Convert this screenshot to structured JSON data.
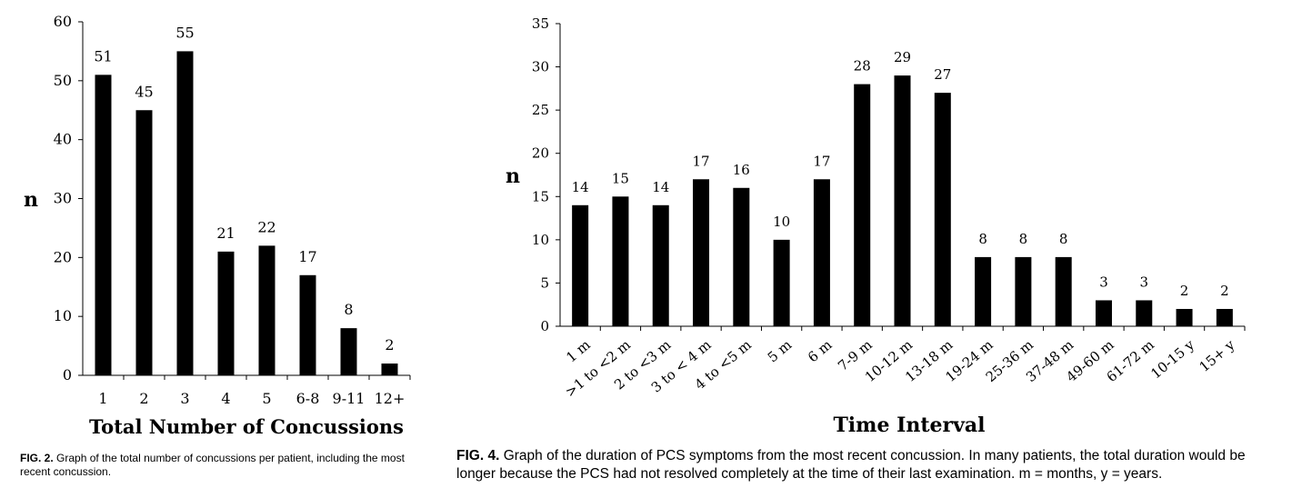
{
  "chart_data": [
    {
      "type": "bar",
      "categories": [
        "1",
        "2",
        "3",
        "4",
        "5",
        "6-8",
        "9-11",
        "12+"
      ],
      "values": [
        51,
        45,
        55,
        21,
        22,
        17,
        8,
        2
      ],
      "title": "",
      "xlabel": "Total Number of Concussions",
      "ylabel": "n",
      "ylim": [
        0,
        60
      ],
      "yticks": [
        "0",
        "10",
        "20",
        "30",
        "40",
        "50",
        "60"
      ],
      "bar_color": "#000000",
      "grid": false,
      "legend": "none",
      "caption_label": "FIG. 2.",
      "caption_text": "Graph of the total number of concussions per patient, including the most recent concussion."
    },
    {
      "type": "bar",
      "categories": [
        "1 m",
        ">1 to <2 m",
        "2 to <3 m",
        "3 to < 4 m",
        "4 to <5 m",
        "5 m",
        "6 m",
        "7-9 m",
        "10-12 m",
        "13-18 m",
        "19-24 m",
        "25-36 m",
        "37-48 m",
        "49-60 m",
        "61-72 m",
        "10-15 y",
        "15+ y"
      ],
      "values": [
        14,
        15,
        14,
        17,
        16,
        10,
        17,
        28,
        29,
        27,
        8,
        8,
        8,
        3,
        3,
        2,
        2
      ],
      "title": "",
      "xlabel": "Time Interval",
      "ylabel": "n",
      "ylim": [
        0,
        35
      ],
      "yticks": [
        "0",
        "5",
        "10",
        "15",
        "20",
        "25",
        "30",
        "35"
      ],
      "bar_color": "#000000",
      "grid": false,
      "legend": "none",
      "caption_label": "FIG. 4.",
      "caption_text": "Graph of the duration of PCS symptoms from the most recent concussion. In many patients, the total duration would be longer because the PCS had not resolved completely at the time of their last examination. m = months, y = years."
    }
  ]
}
